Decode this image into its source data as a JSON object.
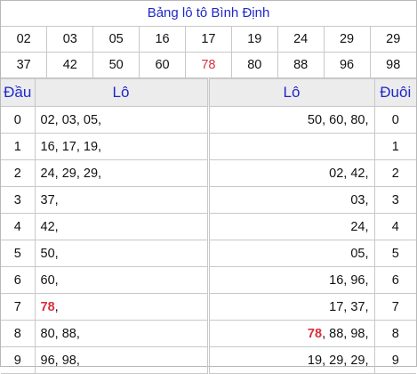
{
  "title": "Bảng lô tô Bình Định",
  "numbers_row1": [
    "02",
    "03",
    "05",
    "16",
    "17",
    "19",
    "24",
    "29",
    "29"
  ],
  "numbers_row2": [
    "37",
    "42",
    "50",
    "60",
    "78",
    "80",
    "88",
    "96",
    "98"
  ],
  "highlight_number": "78",
  "highlight_color": "#d8303c",
  "title_color": "#1f28c8",
  "headers": {
    "dau": "Đầu",
    "lo_left": "Lô",
    "lo_right": "Lô",
    "duoi": "Đuôi"
  },
  "rows": [
    {
      "digit": "0",
      "dau_list": "02, 03, 05,",
      "duoi_list": "50, 60, 80,"
    },
    {
      "digit": "1",
      "dau_list": "16, 17, 19,",
      "duoi_list": ""
    },
    {
      "digit": "2",
      "dau_list": "24, 29, 29,",
      "duoi_list": "02, 42,"
    },
    {
      "digit": "3",
      "dau_list": "37,",
      "duoi_list": "03,"
    },
    {
      "digit": "4",
      "dau_list": "42,",
      "duoi_list": "24,"
    },
    {
      "digit": "5",
      "dau_list": "50,",
      "duoi_list": "05,"
    },
    {
      "digit": "6",
      "dau_list": "60,",
      "duoi_list": "16, 96,"
    },
    {
      "digit": "7",
      "dau_list": "78,",
      "duoi_list": "17, 37,"
    },
    {
      "digit": "8",
      "dau_list": "80, 88,",
      "duoi_list": "78, 88, 98,"
    },
    {
      "digit": "9",
      "dau_list": "96, 98,",
      "duoi_list": "19, 29, 29,"
    }
  ]
}
